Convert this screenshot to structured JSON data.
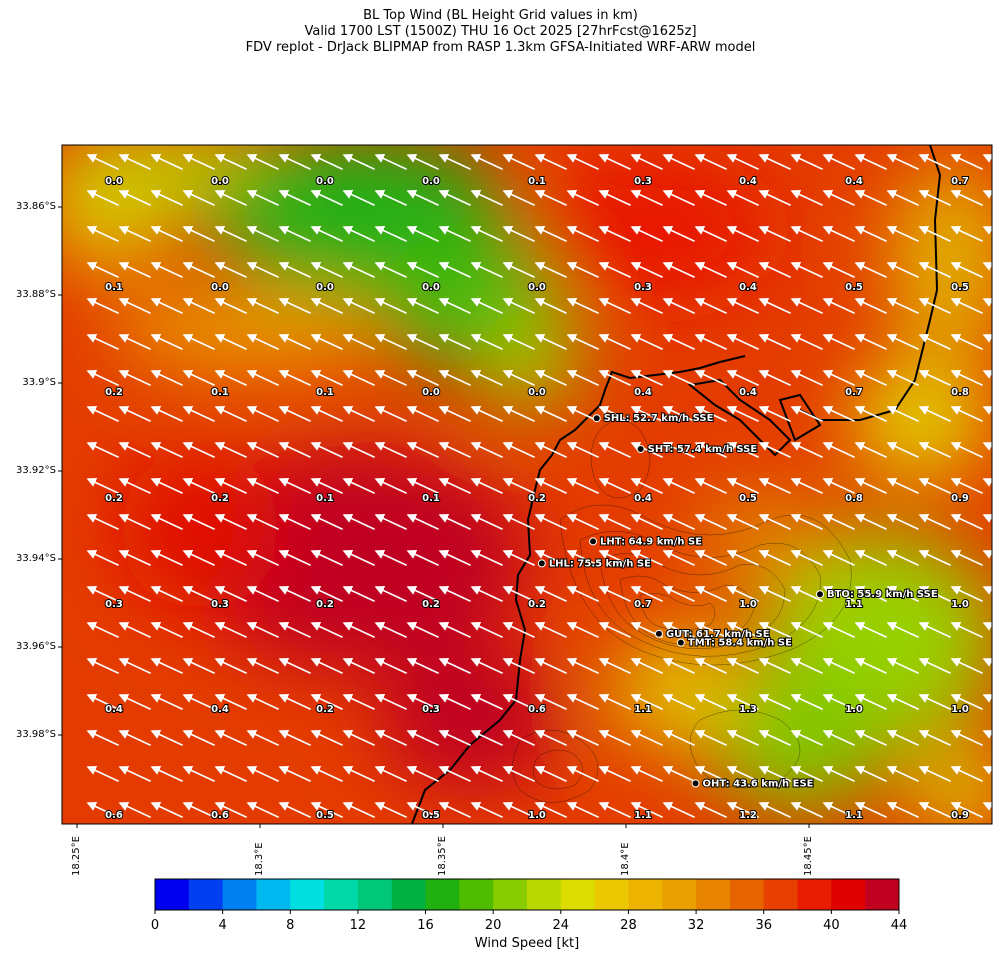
{
  "title_lines": [
    "BL Top Wind (BL Height Grid values in km)",
    "Valid 1700 LST (1500Z) THU 16 Oct 2025 [27hrFcst@1625z]",
    "FDV replot - DrJack BLIPMAP from RASP 1.3km GFSA-Initiated WRF-ARW model"
  ],
  "y_ticks": [
    "33.86°S",
    "33.88°S",
    "33.9°S",
    "33.92°S",
    "33.94°S",
    "33.96°S",
    "33.98°S"
  ],
  "x_ticks": [
    "18.25°E",
    "18.3°E",
    "18.35°E",
    "18.4°E",
    "18.45°E"
  ],
  "grid_values": [
    [
      "0.0",
      "0.0",
      "0.0",
      "0.0",
      "0.1",
      "0.3",
      "0.4",
      "0.4",
      "0.7"
    ],
    [
      "0.1",
      "0.0",
      "0.0",
      "0.0",
      "0.0",
      "0.3",
      "0.4",
      "0.5",
      "0.5"
    ],
    [
      "0.2",
      "0.1",
      "0.1",
      "0.0",
      "0.0",
      "0.4",
      "0.4",
      "0.7",
      "0.8"
    ],
    [
      "0.2",
      "0.2",
      "0.1",
      "0.1",
      "0.2",
      "0.4",
      "0.5",
      "0.8",
      "0.9"
    ],
    [
      "0.3",
      "0.3",
      "0.2",
      "0.2",
      "0.2",
      "0.7",
      "1.0",
      "1.1",
      "1.0"
    ],
    [
      "0.4",
      "0.4",
      "0.2",
      "0.3",
      "0.6",
      "1.1",
      "1.3",
      "1.0",
      "1.0"
    ],
    [
      "0.6",
      "0.6",
      "0.5",
      "0.5",
      "1.0",
      "1.1",
      "1.2",
      "1.1",
      "0.9"
    ]
  ],
  "stations": [
    {
      "label": "SHL: 52.7 km/h SSE",
      "lon": 18.392,
      "lat": 33.908
    },
    {
      "label": "SHT: 57.4 km/h SSE",
      "lon": 18.404,
      "lat": 33.915
    },
    {
      "label": "LHT: 64.9 km/h SE",
      "lon": 18.391,
      "lat": 33.936
    },
    {
      "label": "LHL: 75.5 km/h SE",
      "lon": 18.377,
      "lat": 33.941
    },
    {
      "label": "BTO: 55.9 km/h SSE",
      "lon": 18.453,
      "lat": 33.948
    },
    {
      "label": "GUT: 61.7 km/h SE",
      "lon": 18.409,
      "lat": 33.957
    },
    {
      "label": "TMT: 58.4 km/h SE",
      "lon": 18.415,
      "lat": 33.959
    },
    {
      "label": "OHT: 43.6 km/h ESE",
      "lon": 18.419,
      "lat": 33.991
    }
  ],
  "colorbar": {
    "label": "Wind Speed [kt]",
    "ticks": [
      "0",
      "4",
      "8",
      "12",
      "16",
      "20",
      "24",
      "28",
      "32",
      "36",
      "40",
      "44"
    ],
    "colors": [
      "#0000f0",
      "#0040f0",
      "#0080f0",
      "#00b8f0",
      "#00e0e0",
      "#00d8a8",
      "#00c878",
      "#00b040",
      "#20b010",
      "#50bc00",
      "#88cc00",
      "#b8d800",
      "#dcdc00",
      "#ecc800",
      "#ecb400",
      "#e8a000",
      "#e88400",
      "#e86400",
      "#e84000",
      "#e81c00",
      "#e00000",
      "#c00020"
    ]
  }
}
